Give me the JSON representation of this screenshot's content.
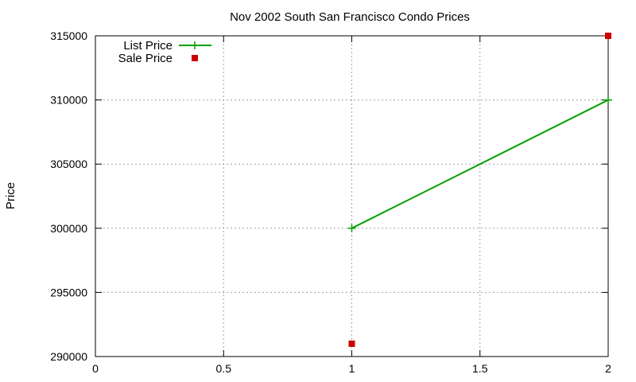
{
  "chart_data": {
    "type": "line",
    "title": "Nov 2002 South San Francisco Condo Prices",
    "xlabel": "",
    "ylabel": "Price",
    "xlim": [
      0,
      2
    ],
    "ylim": [
      290000,
      315000
    ],
    "x_ticks": [
      0,
      0.5,
      1,
      1.5,
      2
    ],
    "x_tick_labels": [
      "0",
      "0.5",
      "1",
      "1.5",
      "2"
    ],
    "y_ticks": [
      290000,
      295000,
      300000,
      305000,
      310000,
      315000
    ],
    "y_tick_labels": [
      "290000",
      "295000",
      "300000",
      "305000",
      "310000",
      "315000"
    ],
    "grid": true,
    "legend_position": "top-left",
    "series": [
      {
        "name": "List Price",
        "style": "linespoints",
        "marker": "plus",
        "color": "#00a000",
        "points": [
          {
            "x": 1,
            "y": 300000
          },
          {
            "x": 2,
            "y": 310000
          }
        ]
      },
      {
        "name": "Sale Price",
        "style": "points",
        "marker": "square",
        "color": "#cc0000",
        "points": [
          {
            "x": 1,
            "y": 291000
          },
          {
            "x": 2,
            "y": 315000
          }
        ]
      }
    ]
  }
}
